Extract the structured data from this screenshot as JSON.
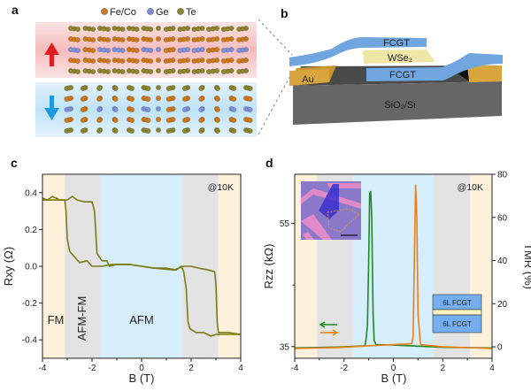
{
  "panels": {
    "a": {
      "label": "a",
      "legend": [
        {
          "name": "Fe/Co",
          "color": "#c9781e"
        },
        {
          "name": "Ge",
          "color": "#7f8fd6"
        },
        {
          "name": "Te",
          "color": "#8a8430"
        }
      ],
      "top_arrow_color": "#e01b24",
      "bottom_arrow_color": "#1e9be0"
    },
    "b": {
      "label": "b",
      "layers": {
        "top": "FCGT",
        "barrier": "WSe₂",
        "bottom": "FCGT",
        "electrode": "Au",
        "substrate": "SiO₂/Si"
      }
    },
    "c": {
      "label": "c"
    },
    "d": {
      "label": "d",
      "legend_stack": {
        "top": "6L FCGT",
        "bottom": "6L FCGT"
      }
    }
  },
  "chart_data": [
    {
      "type": "line",
      "xlabel": "B (T)",
      "ylabel": "Rxy (Ω)",
      "xlim": [
        -4,
        4
      ],
      "ylim": [
        -0.5,
        0.5
      ],
      "x_ticks": [
        "-4",
        "-2",
        "0",
        "2",
        "4"
      ],
      "y_ticks": [
        "-0.4",
        "-0.2",
        "0.0",
        "0.2",
        "0.4"
      ],
      "annotation": "@10K",
      "grid": false,
      "regions": [
        {
          "label": "FM",
          "from": -4,
          "to": -3.1,
          "color": "#fdf1dc"
        },
        {
          "label": "AFM-FM",
          "from": -3.1,
          "to": -1.65,
          "color": "#e3e3e3"
        },
        {
          "label": "AFM",
          "from": -1.65,
          "to": 1.65,
          "color": "#d6eefb"
        },
        {
          "label": "",
          "from": 1.65,
          "to": 3.1,
          "color": "#e3e3e3"
        },
        {
          "label": "",
          "from": 3.1,
          "to": 4,
          "color": "#fdf1dc"
        }
      ],
      "series": [
        {
          "color": "#7b7a14",
          "points": [
            [
              -4,
              0.37
            ],
            [
              -3.8,
              0.36
            ],
            [
              -3.6,
              0.38
            ],
            [
              -3.3,
              0.36
            ],
            [
              -3.1,
              0.36
            ],
            [
              -3.05,
              0.3
            ],
            [
              -3.0,
              0.15
            ],
            [
              -2.9,
              0.08
            ],
            [
              -2.7,
              0.05
            ],
            [
              -2.5,
              0.02
            ],
            [
              -2.2,
              0.03
            ],
            [
              -2.0,
              0.0
            ],
            [
              -1.8,
              0.0
            ],
            [
              -1.6,
              0.0
            ],
            [
              -1.2,
              0.01
            ],
            [
              -0.5,
              0.01
            ],
            [
              0,
              0.0
            ],
            [
              0.5,
              -0.01
            ],
            [
              1.0,
              -0.01
            ],
            [
              1.4,
              -0.02
            ],
            [
              1.6,
              0.0
            ],
            [
              1.7,
              -0.03
            ],
            [
              1.8,
              -0.12
            ],
            [
              1.87,
              -0.3
            ],
            [
              1.95,
              -0.34
            ],
            [
              2.2,
              -0.36
            ],
            [
              2.5,
              -0.36
            ],
            [
              2.8,
              -0.38
            ],
            [
              3.0,
              -0.37
            ],
            [
              3.5,
              -0.37
            ],
            [
              4,
              -0.37
            ]
          ]
        },
        {
          "color": "#7b7a14",
          "points": [
            [
              4,
              -0.37
            ],
            [
              3.5,
              -0.36
            ],
            [
              3.1,
              -0.36
            ],
            [
              3.05,
              -0.3
            ],
            [
              3.0,
              -0.1
            ],
            [
              2.95,
              -0.03
            ],
            [
              2.7,
              -0.02
            ],
            [
              2.3,
              -0.01
            ],
            [
              2.0,
              0.0
            ],
            [
              1.7,
              0.0
            ],
            [
              1.3,
              -0.02
            ],
            [
              0.5,
              -0.01
            ],
            [
              0,
              0.0
            ],
            [
              -0.5,
              0.01
            ],
            [
              -1.0,
              0.01
            ],
            [
              -1.3,
              0.0
            ],
            [
              -1.4,
              0.03
            ],
            [
              -1.6,
              0.03
            ],
            [
              -1.8,
              0.07
            ],
            [
              -1.9,
              0.3
            ],
            [
              -2.0,
              0.35
            ],
            [
              -2.3,
              0.35
            ],
            [
              -2.6,
              0.36
            ],
            [
              -2.8,
              0.38
            ],
            [
              -3.0,
              0.36
            ],
            [
              -3.5,
              0.36
            ],
            [
              -4,
              0.36
            ]
          ]
        }
      ]
    },
    {
      "type": "line",
      "xlabel": "B (T)",
      "ylabel": "Rzz (kΩ)",
      "ylabel_right": "TMR (%)",
      "xlim": [
        -4,
        4
      ],
      "ylim": [
        -5.3,
        80
      ],
      "ylim_left": [
        33.1,
        63
      ],
      "x_ticks": [
        "-4",
        "-2",
        "0",
        "2",
        "4"
      ],
      "y_ticks_left": [
        "35",
        "55"
      ],
      "y_ticks_right": [
        "0",
        "20",
        "40",
        "60",
        "80"
      ],
      "annotation": "@10K",
      "grid": false,
      "regions": [
        {
          "from": -4,
          "to": -3.1,
          "color": "#fdf1dc"
        },
        {
          "from": -3.1,
          "to": -1.65,
          "color": "#e3e3e3"
        },
        {
          "from": -1.65,
          "to": 1.65,
          "color": "#d6eefb"
        },
        {
          "from": 1.65,
          "to": 3.1,
          "color": "#e3e3e3"
        },
        {
          "from": 3.1,
          "to": 4,
          "color": "#fdf1dc"
        }
      ],
      "series": [
        {
          "color": "#1f8a1f",
          "direction": "sweep-down",
          "points": [
            [
              4,
              -0.5
            ],
            [
              2,
              -0.2
            ],
            [
              1,
              0.3
            ],
            [
              0,
              0.8
            ],
            [
              -0.7,
              1
            ],
            [
              -0.78,
              3
            ],
            [
              -0.82,
              15
            ],
            [
              -0.88,
              60
            ],
            [
              -0.92,
              72
            ],
            [
              -0.96,
              71
            ],
            [
              -1.0,
              40
            ],
            [
              -1.05,
              10
            ],
            [
              -1.1,
              4
            ],
            [
              -1.15,
              0.5
            ],
            [
              -2,
              0
            ],
            [
              -4,
              -0.5
            ]
          ]
        },
        {
          "color": "#f07e10",
          "direction": "sweep-up",
          "points": [
            [
              -4,
              -0.8
            ],
            [
              -2,
              -0.2
            ],
            [
              -1,
              0.5
            ],
            [
              0,
              1
            ],
            [
              0.75,
              1.5
            ],
            [
              0.8,
              5
            ],
            [
              0.85,
              40
            ],
            [
              0.9,
              75
            ],
            [
              0.95,
              60
            ],
            [
              1.0,
              15
            ],
            [
              1.05,
              8
            ],
            [
              1.1,
              1
            ],
            [
              2,
              0
            ],
            [
              4,
              -0.8
            ]
          ]
        }
      ]
    }
  ]
}
